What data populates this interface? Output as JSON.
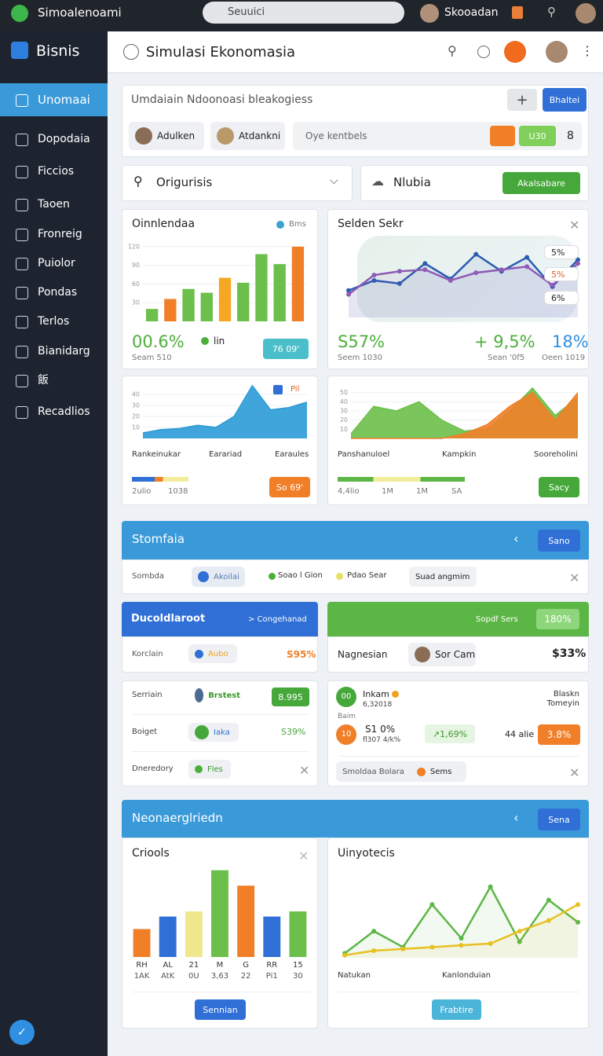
{
  "topbar": {
    "app": "Simoalenoami",
    "search": "Seuuici",
    "user": "Skooadan"
  },
  "sidebar": {
    "brand": "Bisnis",
    "items": [
      "Unomaai",
      "Dopodaia",
      "Ficcios",
      "Taoen",
      "Fronreig",
      "Puiolor",
      "Pondas",
      "Terlos",
      "Bianidarg",
      "飯",
      "Recadlios"
    ]
  },
  "header": {
    "title": "Simulasi Ekonomasia"
  },
  "filter": {
    "text": "Umdaiain Ndoonoasi bleakogiess",
    "plus": "+",
    "button": "Bhaltei",
    "chips": [
      "Adulken",
      "Atdankni"
    ],
    "input": "Oye kentbels",
    "tag": "U30",
    "count": "8"
  },
  "toolbar": {
    "dropdown": "Origurisis",
    "panel": "Nlubia",
    "button": "Akalsabare"
  },
  "card1": {
    "title": "Oinnlendaa",
    "legend": "Bms",
    "stat": "00.6%",
    "stat_label": "lin",
    "button": "76 09'",
    "sub": "Seam 510"
  },
  "card2": {
    "title": "Selden Sekr",
    "tags": [
      "5%",
      "5%",
      "6%"
    ],
    "stats": [
      {
        "value": "S57%",
        "sub": "Seem 1030"
      },
      {
        "value": "+ 9,5%",
        "sub": "Sean '0f5"
      },
      {
        "value": "18%",
        "sub": "Oeen 1019"
      }
    ]
  },
  "card3": {
    "legend": "Pil",
    "labels": [
      "Rankeinukar",
      "Earariad",
      "Earaules"
    ],
    "sub": [
      "2ulio",
      "1038"
    ],
    "button": "So 69'"
  },
  "card4": {
    "labels": [
      "Panshanuloel",
      "Kampkin",
      "Sooreholini"
    ],
    "sub": [
      "4,4lio",
      "1M",
      "1M",
      "SA"
    ],
    "button": "Sacy"
  },
  "section1": {
    "title": "Stomfaia",
    "button": "Sano",
    "row": {
      "label": "Sombda",
      "chip": "Akoilai",
      "legend": [
        "Soao l Gion",
        "Pdao Sear"
      ],
      "filter": "Suad angmim"
    }
  },
  "card5": {
    "title": "Ducoldlaroot",
    "link": "> Congehanad",
    "label": "Korclain",
    "chip": "Aubo",
    "value": "S95%"
  },
  "card6": {
    "title": "Sopdf Sers",
    "badge": "180%",
    "label": "Nagnesian",
    "chip": "Sor Cam",
    "value": "$33%"
  },
  "card7": {
    "rows": [
      {
        "label": "Serriain",
        "chip": "Brstest",
        "value": "8.995"
      },
      {
        "label": "Boiget",
        "chip": "Iaka",
        "value": "S39%"
      },
      {
        "label": "Dneredory",
        "chip": "Fles"
      }
    ]
  },
  "card8": {
    "title": "Inkam",
    "title_sub": "6,32018",
    "corner": [
      "Blaskn",
      "Tomeyin"
    ],
    "label": "Baim",
    "icons": [
      "00",
      "10"
    ],
    "value": "S1 0%",
    "value_sub": "fl307 4/k%",
    "change": "↗1,69%",
    "count": "44 alie",
    "badge": "3.8%",
    "footer": "Smoldaa Bolara",
    "footer_chip": "Sems"
  },
  "section2": {
    "title": "Neonaerglriedn",
    "button": "Sena"
  },
  "card9": {
    "title": "Criools",
    "button": "Sennian"
  },
  "card10": {
    "title": "Uinyotecis",
    "labels": [
      "Natukan",
      "Kanlonduian"
    ],
    "button": "Frabtire"
  },
  "charts": [
    {
      "type": "bar",
      "values": [
        20,
        36,
        52,
        46,
        70,
        62,
        108,
        92,
        120
      ],
      "colors": [
        "#6cbf4a",
        "#f07f28",
        "#6cbf4a",
        "#6cbf4a",
        "#f5a623",
        "#6cbf4a",
        "#6cbf4a",
        "#6cbf4a",
        "#f07f28"
      ],
      "ylim": [
        0,
        130
      ],
      "yticks": [
        30,
        60,
        90,
        120
      ]
    },
    {
      "type": "line",
      "series": [
        {
          "color": "#2a5db0",
          "values": [
            35,
            48,
            44,
            70,
            50,
            82,
            60,
            78,
            40,
            75
          ]
        },
        {
          "color": "#8e5bb5",
          "values": [
            30,
            55,
            60,
            62,
            48,
            58,
            62,
            66,
            42,
            70
          ]
        }
      ],
      "ylim": [
        0,
        100
      ]
    },
    {
      "type": "area",
      "series": [
        {
          "color": "#2b9bd6",
          "values": [
            5,
            8,
            9,
            12,
            10,
            20,
            48,
            26,
            28,
            33
          ]
        }
      ],
      "ylim": [
        0,
        50
      ],
      "yticks": [
        10,
        20,
        30,
        40
      ]
    },
    {
      "type": "area",
      "series": [
        {
          "color": "#6cbf4a",
          "values": [
            5,
            35,
            30,
            40,
            20,
            8,
            10,
            30,
            55,
            25,
            45
          ]
        },
        {
          "color": "#f07f28",
          "values": [
            0,
            0,
            0,
            0,
            0,
            5,
            15,
            35,
            50,
            20,
            50
          ]
        }
      ],
      "ylim": [
        0,
        60
      ],
      "yticks": [
        10,
        20,
        30,
        40,
        50
      ]
    },
    {
      "type": "bar",
      "values": [
        38,
        55,
        62,
        118,
        97,
        55,
        62
      ],
      "colors": [
        "#f07f28",
        "#2f6fd6",
        "#f0e68c",
        "#6cbf4a",
        "#f07f28",
        "#2f6fd6",
        "#6cbf4a"
      ],
      "ylim": [
        0,
        125
      ],
      "categories": [
        "RH",
        "AL",
        "21",
        "M",
        "G",
        "RR",
        "15"
      ],
      "sublabels": [
        "1AK",
        "AtK",
        "0U",
        "3,63",
        "22",
        "Pi1",
        "30"
      ]
    },
    {
      "type": "line",
      "series": [
        {
          "color": "#5cb646",
          "values": [
            5,
            30,
            12,
            60,
            22,
            80,
            18,
            65,
            40
          ]
        },
        {
          "color": "#e8c020",
          "values": [
            3,
            8,
            10,
            12,
            14,
            16,
            30,
            42,
            60
          ]
        }
      ],
      "ylim": [
        0,
        100
      ]
    }
  ]
}
